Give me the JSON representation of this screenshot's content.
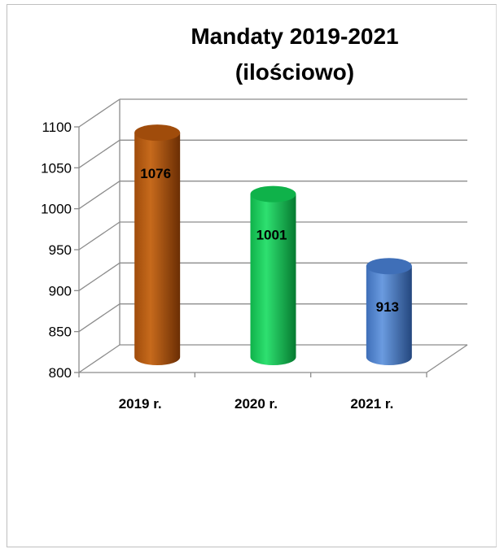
{
  "chart_data": {
    "type": "bar",
    "style": "3d-cylinder",
    "title_lines": [
      "Mandaty 2019-2021",
      "(ilościowo)"
    ],
    "categories": [
      "2019 r.",
      "2020 r.",
      "2021 r."
    ],
    "values": [
      1076,
      1001,
      913
    ],
    "data_labels": [
      "1076",
      "1001",
      "913"
    ],
    "ylim": [
      800,
      1100
    ],
    "yticks": [
      "800",
      "850",
      "900",
      "950",
      "1000",
      "1050",
      "1100"
    ],
    "grid": true,
    "legend": "none",
    "colors": [
      "#c0504d",
      "#9bbb59",
      "#4f81bd"
    ],
    "bar_colors": [
      {
        "light": "#c76a1c",
        "mid": "#a04c0b",
        "dark": "#6b2e04"
      },
      {
        "light": "#2ee070",
        "mid": "#0fb24a",
        "dark": "#067a30"
      },
      {
        "light": "#6a9be0",
        "mid": "#3f6fb8",
        "dark": "#24477e"
      }
    ]
  }
}
